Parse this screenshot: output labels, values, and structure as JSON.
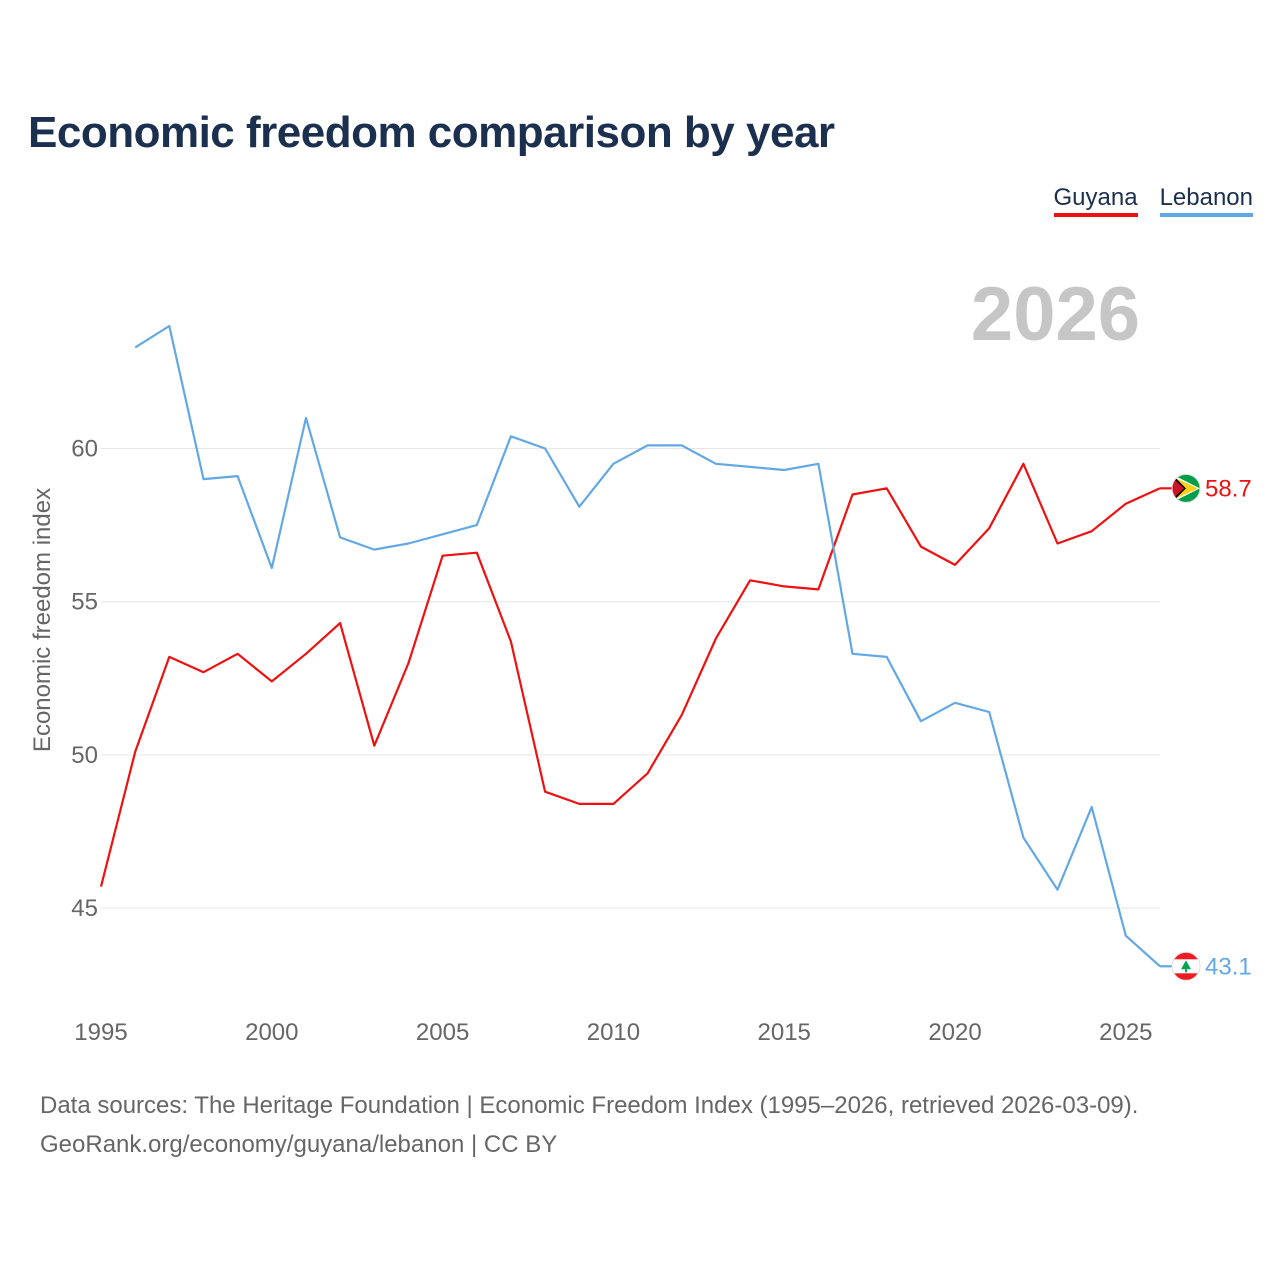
{
  "title": "Economic freedom comparison by year",
  "legend": [
    {
      "name": "Guyana",
      "color": "#ee1111"
    },
    {
      "name": "Lebanon",
      "color": "#62a8e5"
    }
  ],
  "footer": {
    "line1": "Data sources: The Heritage Foundation | Economic Freedom Index (1995–2026, retrieved 2026-03-09).",
    "line2": "GeoRank.org/economy/guyana/lebanon | CC BY"
  },
  "chart_data": {
    "type": "line",
    "title": "Economic freedom comparison by year",
    "ylabel": "Economic freedom index",
    "xlabel": "",
    "year_label": "2026",
    "xlim": [
      1995,
      2026
    ],
    "ylim": [
      42,
      65.5
    ],
    "x_ticks": [
      1995,
      2000,
      2005,
      2010,
      2015,
      2020,
      2025
    ],
    "y_ticks": [
      45,
      50,
      55,
      60
    ],
    "grid": true,
    "series": [
      {
        "name": "Guyana",
        "color": "#ee1111",
        "end_label": "58.7",
        "flag": "guyana-flag-icon",
        "x": [
          1995,
          1996,
          1997,
          1998,
          1999,
          2000,
          2001,
          2002,
          2003,
          2004,
          2005,
          2006,
          2007,
          2008,
          2009,
          2010,
          2011,
          2012,
          2013,
          2014,
          2015,
          2016,
          2017,
          2018,
          2019,
          2020,
          2021,
          2022,
          2023,
          2024,
          2025,
          2026
        ],
        "values": [
          45.7,
          50.1,
          53.2,
          52.7,
          53.3,
          52.4,
          53.3,
          54.3,
          50.3,
          53.0,
          56.5,
          56.6,
          53.7,
          48.8,
          48.4,
          48.4,
          49.4,
          51.3,
          53.8,
          55.7,
          55.5,
          55.4,
          58.5,
          58.7,
          56.8,
          56.2,
          57.4,
          59.5,
          56.9,
          57.3,
          58.2,
          58.7
        ]
      },
      {
        "name": "Lebanon",
        "color": "#62a8e5",
        "end_label": "43.1",
        "flag": "lebanon-flag-icon",
        "x": [
          1996,
          1997,
          1998,
          1999,
          2000,
          2001,
          2002,
          2003,
          2004,
          2005,
          2006,
          2007,
          2008,
          2009,
          2010,
          2011,
          2012,
          2013,
          2014,
          2015,
          2016,
          2017,
          2018,
          2019,
          2020,
          2021,
          2022,
          2023,
          2024,
          2025,
          2026
        ],
        "values": [
          63.3,
          64.0,
          59.0,
          59.1,
          56.1,
          61.0,
          57.1,
          56.7,
          56.9,
          57.2,
          57.5,
          60.4,
          60.0,
          58.1,
          59.5,
          60.1,
          60.1,
          59.5,
          59.4,
          59.3,
          59.5,
          53.3,
          53.2,
          51.1,
          51.7,
          51.4,
          47.3,
          45.6,
          48.3,
          44.1,
          43.1
        ]
      }
    ]
  }
}
